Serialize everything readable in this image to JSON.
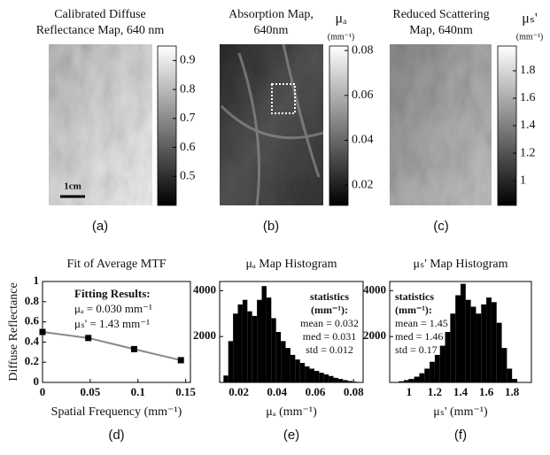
{
  "chart_data": [
    {
      "type": "image",
      "title": [
        "Calibrated Diffuse",
        "Reflectance Map, 640 nm"
      ],
      "clim": [
        0.4,
        0.95
      ],
      "cticks": [
        0.9,
        0.8,
        0.7,
        0.6,
        0.5
      ],
      "scale_bar": "1cm",
      "caption": "(a)"
    },
    {
      "type": "image",
      "title": [
        "Absorption Map,",
        "640nm"
      ],
      "colorbar_label": [
        "μₐ",
        "(mm⁻¹)"
      ],
      "clim": [
        0.011,
        0.082
      ],
      "cticks": [
        0.08,
        0.06,
        0.04,
        0.02
      ],
      "caption": "(b)"
    },
    {
      "type": "image",
      "title": [
        "Reduced Scattering",
        "Map, 640nm"
      ],
      "colorbar_label": [
        "μₛ'",
        "(mm⁻¹)"
      ],
      "clim": [
        0.82,
        1.98
      ],
      "cticks": [
        1.8,
        1.6,
        1.4,
        1.2,
        1
      ],
      "caption": "(c)"
    },
    {
      "type": "line",
      "title": "Fit of Average MTF",
      "x_label": "Spatial Frequency  (mm⁻¹)",
      "y_label": "Diffuse Reflectance",
      "x": [
        0,
        0.048,
        0.096,
        0.145
      ],
      "values": [
        0.5,
        0.44,
        0.33,
        0.22
      ],
      "color": "#888888",
      "xlim": [
        0,
        0.155
      ],
      "xticks": [
        0,
        0.05,
        0.1,
        0.15
      ],
      "ylim": [
        0,
        1
      ],
      "yticks": [
        0,
        0.2,
        0.4,
        0.6,
        0.8,
        1
      ],
      "annotations": [
        "Fitting Results:",
        "μₐ = 0.030 mm⁻¹",
        "μₛ' = 1.43 mm⁻¹"
      ],
      "caption": "(d)"
    },
    {
      "type": "histogram",
      "title": "μₐ Map Histogram",
      "x_label": "μₐ (mm⁻¹)",
      "bins": [
        0.012,
        0.0145,
        0.017,
        0.0195,
        0.022,
        0.0245,
        0.027,
        0.0295,
        0.032,
        0.0345,
        0.037,
        0.0395,
        0.042,
        0.0445,
        0.047,
        0.0495,
        0.052,
        0.0545,
        0.057,
        0.0595,
        0.062,
        0.0645,
        0.067,
        0.0695,
        0.072,
        0.0745,
        0.077,
        0.0795,
        0.082
      ],
      "values": [
        300,
        1800,
        3000,
        3400,
        3600,
        3100,
        2900,
        3600,
        4200,
        3700,
        2800,
        2200,
        1800,
        1500,
        1200,
        1000,
        850,
        700,
        600,
        500,
        420,
        350,
        280,
        200,
        150,
        100,
        60,
        30
      ],
      "color": "#000000",
      "xlim": [
        0.01,
        0.085
      ],
      "xticks": [
        0.02,
        0.04,
        0.06,
        0.08
      ],
      "ylim": [
        0,
        4400
      ],
      "yticks": [
        2000,
        4000
      ],
      "annotations": [
        "statistics",
        "(mm⁻¹):",
        "mean = 0.032",
        "med = 0.031",
        "std = 0.012"
      ],
      "caption": "(e)"
    },
    {
      "type": "histogram",
      "title": "μₛ' Map Histogram",
      "x_label": "μₛ' (mm⁻¹)",
      "bins": [
        0.92,
        0.96,
        1,
        1.04,
        1.08,
        1.12,
        1.16,
        1.2,
        1.24,
        1.28,
        1.32,
        1.36,
        1.4,
        1.44,
        1.48,
        1.52,
        1.56,
        1.6,
        1.64,
        1.68,
        1.72,
        1.76,
        1.8,
        1.84
      ],
      "values": [
        50,
        100,
        150,
        250,
        400,
        600,
        900,
        1200,
        1600,
        2200,
        3000,
        3800,
        4300,
        3600,
        3300,
        3000,
        3400,
        3700,
        3500,
        2600,
        1500,
        600,
        150
      ],
      "color": "#000000",
      "xlim": [
        0.85,
        1.95
      ],
      "xticks": [
        1,
        1.2,
        1.4,
        1.6,
        1.8
      ],
      "ylim": [
        0,
        4400
      ],
      "yticks": [
        2000,
        4000
      ],
      "annotations": [
        "statistics",
        "(mm⁻¹):",
        "mean = 1.45",
        "med = 1.46",
        "std = 0.17"
      ],
      "caption": "(f)"
    }
  ]
}
